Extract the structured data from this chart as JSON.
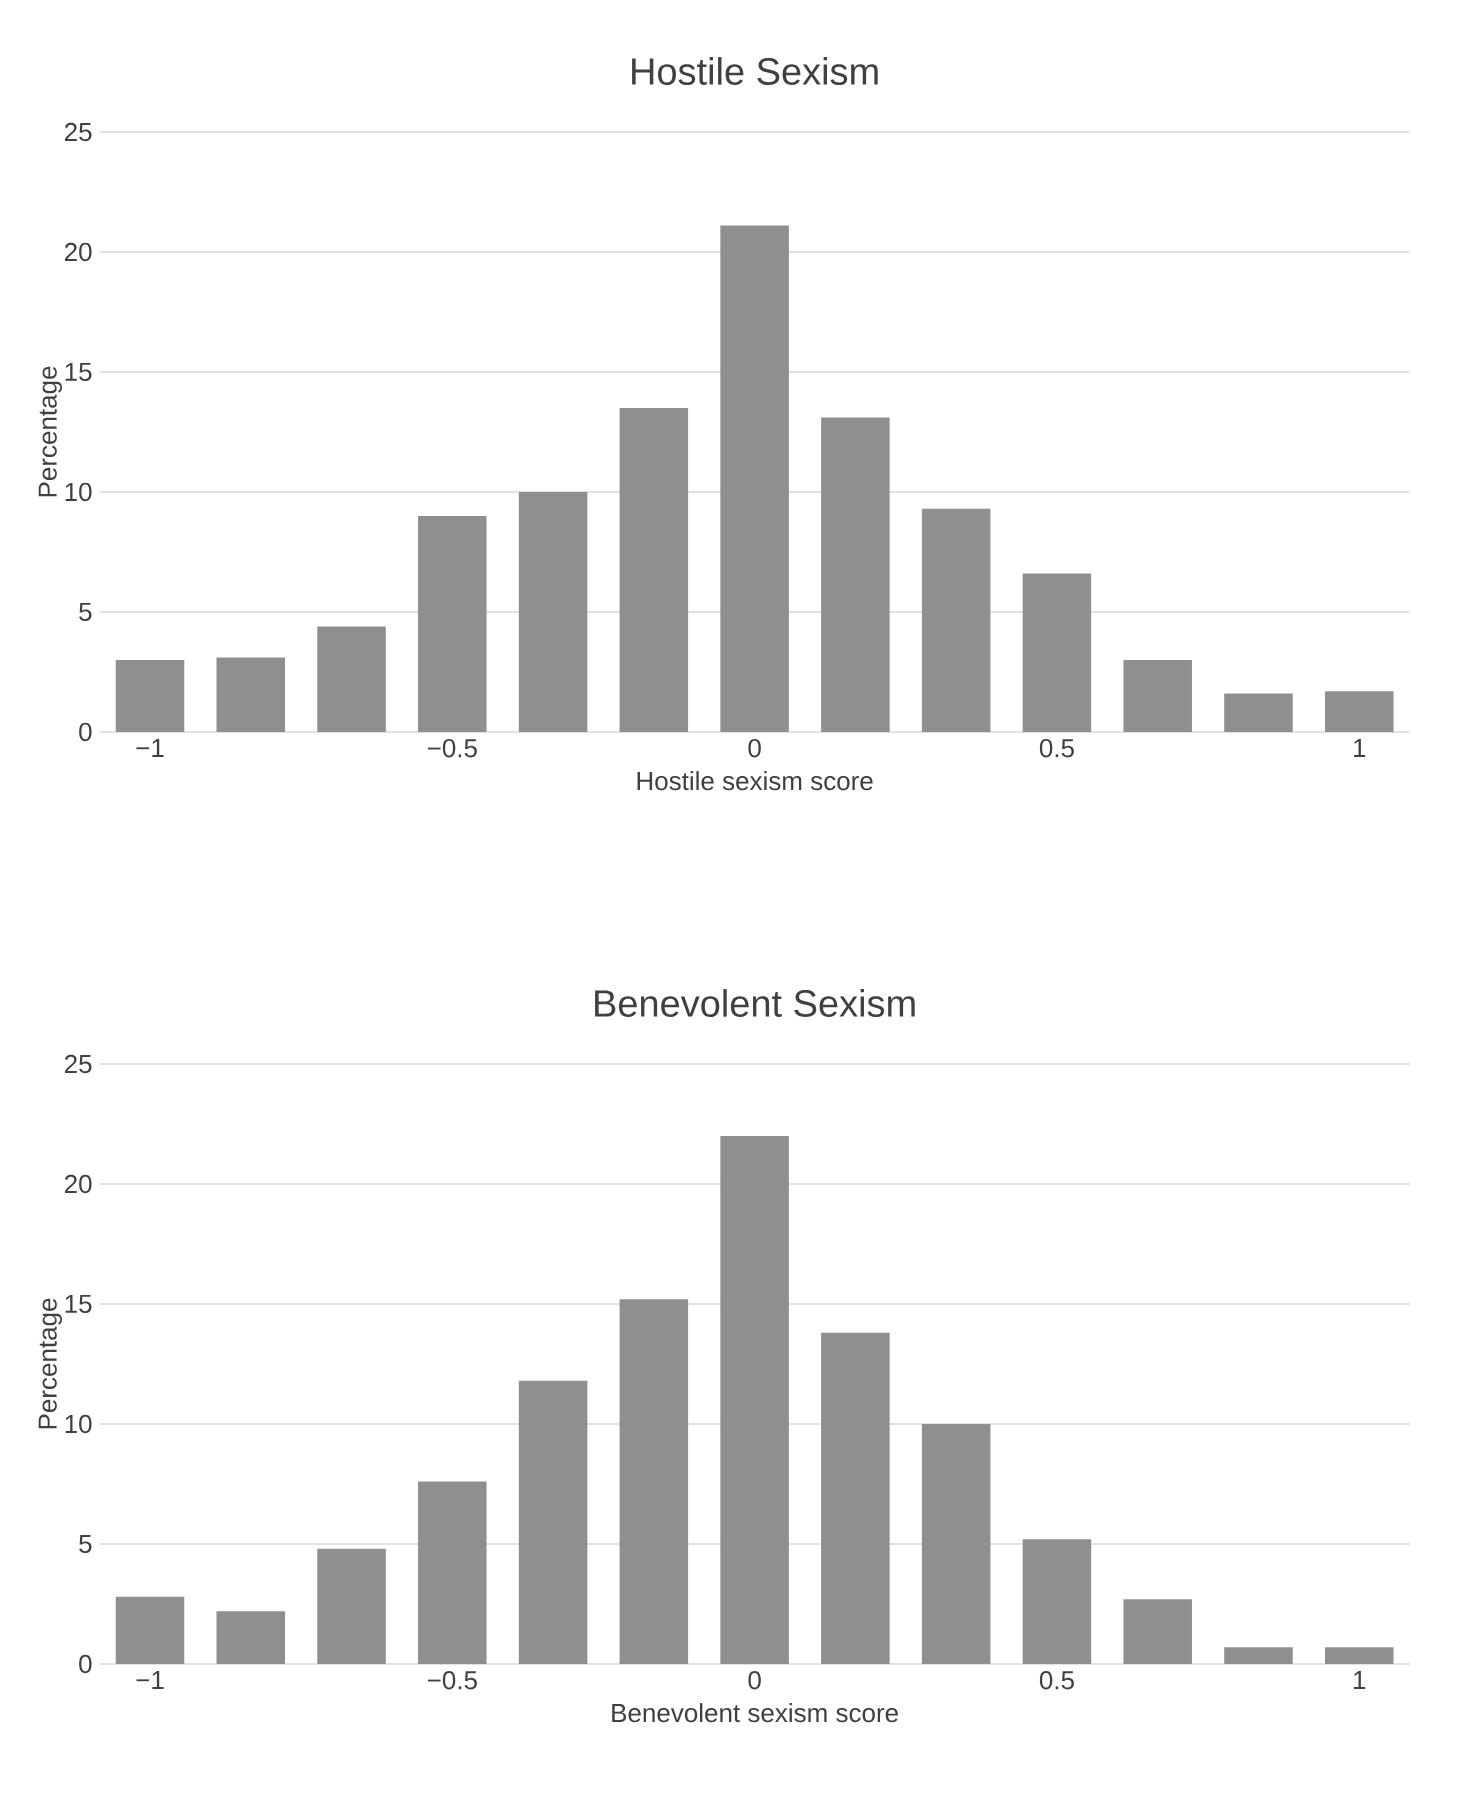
{
  "chart_data": [
    {
      "type": "bar",
      "title": "Hostile Sexism",
      "xlabel": "Hostile sexism score",
      "ylabel": "Percentage",
      "categories": [
        "−1",
        null,
        null,
        "−0.5",
        null,
        null,
        "0",
        null,
        null,
        "0.5",
        null,
        null,
        "1"
      ],
      "values": [
        3.0,
        3.1,
        4.4,
        9.0,
        10.0,
        13.5,
        21.1,
        13.1,
        9.3,
        6.6,
        3.0,
        1.6,
        1.7
      ],
      "color": "#8f8f8f",
      "ylim": [
        0,
        25
      ],
      "yticks": [
        0,
        5,
        10,
        15,
        20,
        25
      ],
      "grid": "y"
    },
    {
      "type": "bar",
      "title": "Benevolent Sexism",
      "xlabel": "Benevolent  sexism score",
      "ylabel": "Percentage",
      "categories": [
        "−1",
        null,
        null,
        "−0.5",
        null,
        null,
        "0",
        null,
        null,
        "0.5",
        null,
        null,
        "1"
      ],
      "values": [
        2.8,
        2.2,
        4.8,
        7.6,
        11.8,
        15.2,
        22.0,
        13.8,
        10.0,
        5.2,
        2.7,
        0.7,
        0.7
      ],
      "color": "#8f8f8f",
      "ylim": [
        0,
        25
      ],
      "yticks": [
        0,
        5,
        10,
        15,
        20,
        25
      ],
      "grid": "y"
    }
  ]
}
